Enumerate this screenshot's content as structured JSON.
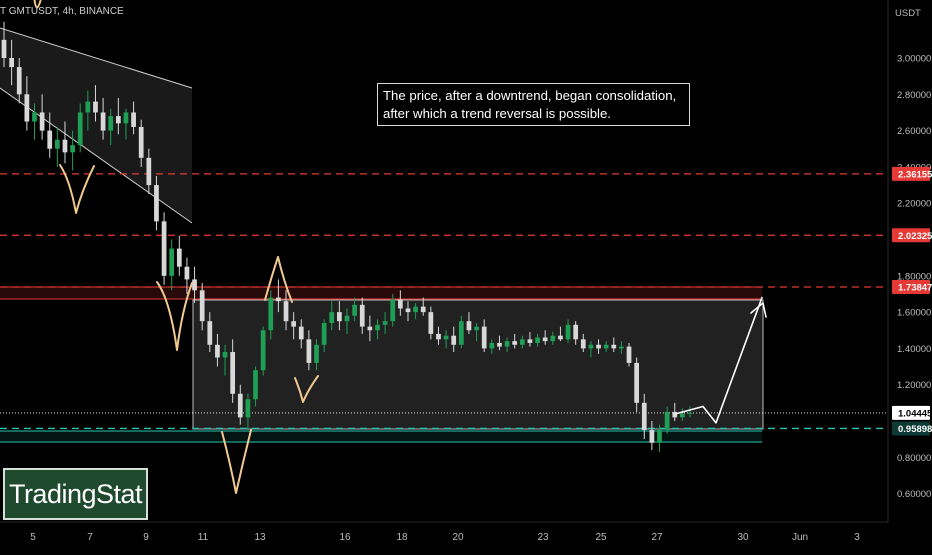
{
  "header": {
    "symbol": "T GMTUSDT, 4h, BINANCE",
    "currency": "USDT"
  },
  "annotation": {
    "line1": "The price, after a downtrend, began consolidation,",
    "line2": "after which a trend reversal is possible."
  },
  "brand": {
    "label": "TradingStat"
  },
  "colors": {
    "background": "#000000",
    "bullish": "#1f9e55",
    "bearish": "#d8d8d8",
    "resistance": "#e53935",
    "support": "#26c6b4",
    "current_price": "#ffffff",
    "drawing_orange": "#f0c890",
    "zone_fill": "#262626"
  },
  "chart_data": {
    "type": "candlestick",
    "title": "",
    "xlabel": "",
    "ylabel": "",
    "ylim": [
      0.5,
      3.25
    ],
    "price_scale": [
      "3.00000",
      "2.80000",
      "2.60000",
      "2.40000",
      "2.20000",
      "1.80000",
      "1.60000",
      "1.40000",
      "1.20000",
      "0.80000",
      "0.60000"
    ],
    "date_ticks": [
      "5",
      "7",
      "9",
      "11",
      "13",
      "16",
      "18",
      "20",
      "23",
      "25",
      "27",
      "30",
      "Jun",
      "3"
    ],
    "levels": [
      {
        "label": "2.36155",
        "value": 2.36155,
        "color": "#e53935",
        "style": "dashed"
      },
      {
        "label": "2.02325",
        "value": 2.02325,
        "color": "#e53935",
        "style": "dashed"
      },
      {
        "label": "1.73847",
        "value": 1.73847,
        "color": "#e53935",
        "style": "dashed"
      },
      {
        "label": "1.04445",
        "value": 1.04445,
        "color": "#ffffff",
        "style": "dotted"
      },
      {
        "label": "0.95898",
        "value": 0.95898,
        "color": "#26c6b4",
        "style": "dashed"
      }
    ],
    "consolidation_zone": {
      "top": 1.72,
      "bottom": 1.01,
      "from": "10",
      "to": "31"
    },
    "support_zone": {
      "top": 0.98,
      "bottom": 0.93
    },
    "resistance_zone": {
      "top": 1.76,
      "bottom": 1.69
    },
    "descending_channel": {
      "from": "4",
      "to": "11"
    },
    "projection": [
      1.04,
      1.08,
      0.99,
      1.68
    ],
    "series": [
      {
        "values": [
          [
            3.1,
            3.2,
            2.95,
            3.0
          ],
          [
            3.0,
            3.1,
            2.85,
            2.95
          ],
          [
            2.95,
            3.0,
            2.75,
            2.8
          ],
          [
            2.8,
            2.9,
            2.6,
            2.65
          ],
          [
            2.65,
            2.75,
            2.55,
            2.7
          ],
          [
            2.7,
            2.8,
            2.55,
            2.6
          ],
          [
            2.6,
            2.7,
            2.45,
            2.5
          ],
          [
            2.5,
            2.62,
            2.4,
            2.55
          ],
          [
            2.55,
            2.65,
            2.42,
            2.48
          ],
          [
            2.48,
            2.6,
            2.38,
            2.52
          ],
          [
            2.52,
            2.75,
            2.48,
            2.7
          ],
          [
            2.7,
            2.82,
            2.6,
            2.76
          ],
          [
            2.76,
            2.85,
            2.65,
            2.7
          ],
          [
            2.7,
            2.78,
            2.55,
            2.6
          ],
          [
            2.6,
            2.72,
            2.52,
            2.68
          ],
          [
            2.68,
            2.78,
            2.58,
            2.64
          ],
          [
            2.64,
            2.72,
            2.55,
            2.7
          ],
          [
            2.7,
            2.76,
            2.58,
            2.62
          ],
          [
            2.62,
            2.66,
            2.4,
            2.45
          ],
          [
            2.45,
            2.5,
            2.25,
            2.3
          ],
          [
            2.3,
            2.35,
            2.05,
            2.1
          ],
          [
            2.1,
            2.15,
            1.75,
            1.8
          ],
          [
            1.8,
            2.0,
            1.72,
            1.95
          ],
          [
            1.95,
            2.02,
            1.8,
            1.85
          ],
          [
            1.85,
            1.9,
            1.7,
            1.78
          ],
          [
            1.78,
            1.85,
            1.65,
            1.72
          ],
          [
            1.72,
            1.76,
            1.5,
            1.55
          ],
          [
            1.55,
            1.6,
            1.38,
            1.42
          ],
          [
            1.42,
            1.48,
            1.3,
            1.35
          ],
          [
            1.35,
            1.42,
            1.25,
            1.38
          ],
          [
            1.38,
            1.45,
            1.1,
            1.15
          ],
          [
            1.15,
            1.2,
            0.98,
            1.02
          ],
          [
            1.02,
            1.15,
            0.95,
            1.12
          ],
          [
            1.12,
            1.3,
            1.08,
            1.28
          ],
          [
            1.28,
            1.52,
            1.25,
            1.5
          ],
          [
            1.5,
            1.72,
            1.45,
            1.68
          ],
          [
            1.68,
            1.78,
            1.6,
            1.66
          ],
          [
            1.66,
            1.72,
            1.5,
            1.55
          ],
          [
            1.55,
            1.6,
            1.45,
            1.52
          ],
          [
            1.52,
            1.56,
            1.4,
            1.45
          ],
          [
            1.45,
            1.5,
            1.28,
            1.32
          ],
          [
            1.32,
            1.45,
            1.28,
            1.42
          ],
          [
            1.42,
            1.56,
            1.38,
            1.54
          ],
          [
            1.54,
            1.66,
            1.5,
            1.6
          ],
          [
            1.6,
            1.66,
            1.5,
            1.55
          ],
          [
            1.55,
            1.62,
            1.48,
            1.58
          ],
          [
            1.58,
            1.68,
            1.55,
            1.64
          ],
          [
            1.64,
            1.68,
            1.48,
            1.52
          ],
          [
            1.52,
            1.58,
            1.44,
            1.5
          ],
          [
            1.5,
            1.56,
            1.45,
            1.53
          ],
          [
            1.53,
            1.6,
            1.48,
            1.55
          ],
          [
            1.55,
            1.7,
            1.52,
            1.67
          ],
          [
            1.67,
            1.72,
            1.58,
            1.62
          ],
          [
            1.62,
            1.66,
            1.55,
            1.6
          ],
          [
            1.6,
            1.65,
            1.56,
            1.63
          ],
          [
            1.63,
            1.68,
            1.58,
            1.6
          ],
          [
            1.6,
            1.63,
            1.45,
            1.48
          ],
          [
            1.48,
            1.52,
            1.42,
            1.45
          ],
          [
            1.45,
            1.5,
            1.4,
            1.47
          ],
          [
            1.47,
            1.52,
            1.38,
            1.42
          ],
          [
            1.42,
            1.58,
            1.4,
            1.55
          ],
          [
            1.55,
            1.6,
            1.48,
            1.5
          ],
          [
            1.5,
            1.54,
            1.44,
            1.52
          ],
          [
            1.52,
            1.56,
            1.38,
            1.4
          ],
          [
            1.4,
            1.45,
            1.37,
            1.43
          ],
          [
            1.43,
            1.47,
            1.39,
            1.41
          ],
          [
            1.41,
            1.46,
            1.38,
            1.44
          ],
          [
            1.44,
            1.48,
            1.4,
            1.42
          ],
          [
            1.42,
            1.47,
            1.4,
            1.45
          ],
          [
            1.45,
            1.49,
            1.41,
            1.43
          ],
          [
            1.43,
            1.48,
            1.41,
            1.46
          ],
          [
            1.46,
            1.5,
            1.42,
            1.44
          ],
          [
            1.44,
            1.49,
            1.42,
            1.47
          ],
          [
            1.47,
            1.52,
            1.44,
            1.45
          ],
          [
            1.45,
            1.56,
            1.43,
            1.53
          ],
          [
            1.53,
            1.55,
            1.42,
            1.45
          ],
          [
            1.45,
            1.48,
            1.38,
            1.4
          ],
          [
            1.4,
            1.44,
            1.35,
            1.42
          ],
          [
            1.42,
            1.45,
            1.37,
            1.4
          ],
          [
            1.4,
            1.44,
            1.38,
            1.42
          ],
          [
            1.42,
            1.46,
            1.38,
            1.4
          ],
          [
            1.4,
            1.44,
            1.37,
            1.41
          ],
          [
            1.41,
            1.43,
            1.3,
            1.32
          ],
          [
            1.32,
            1.35,
            1.05,
            1.1
          ],
          [
            1.1,
            1.15,
            0.9,
            0.95
          ],
          [
            0.95,
            1.0,
            0.84,
            0.88
          ],
          [
            0.88,
            0.98,
            0.83,
            0.95
          ],
          [
            0.95,
            1.08,
            0.93,
            1.05
          ],
          [
            1.05,
            1.1,
            1.0,
            1.02
          ],
          [
            1.02,
            1.07,
            1.0,
            1.04
          ],
          [
            1.04,
            1.08,
            1.02,
            1.045
          ]
        ]
      }
    ]
  }
}
